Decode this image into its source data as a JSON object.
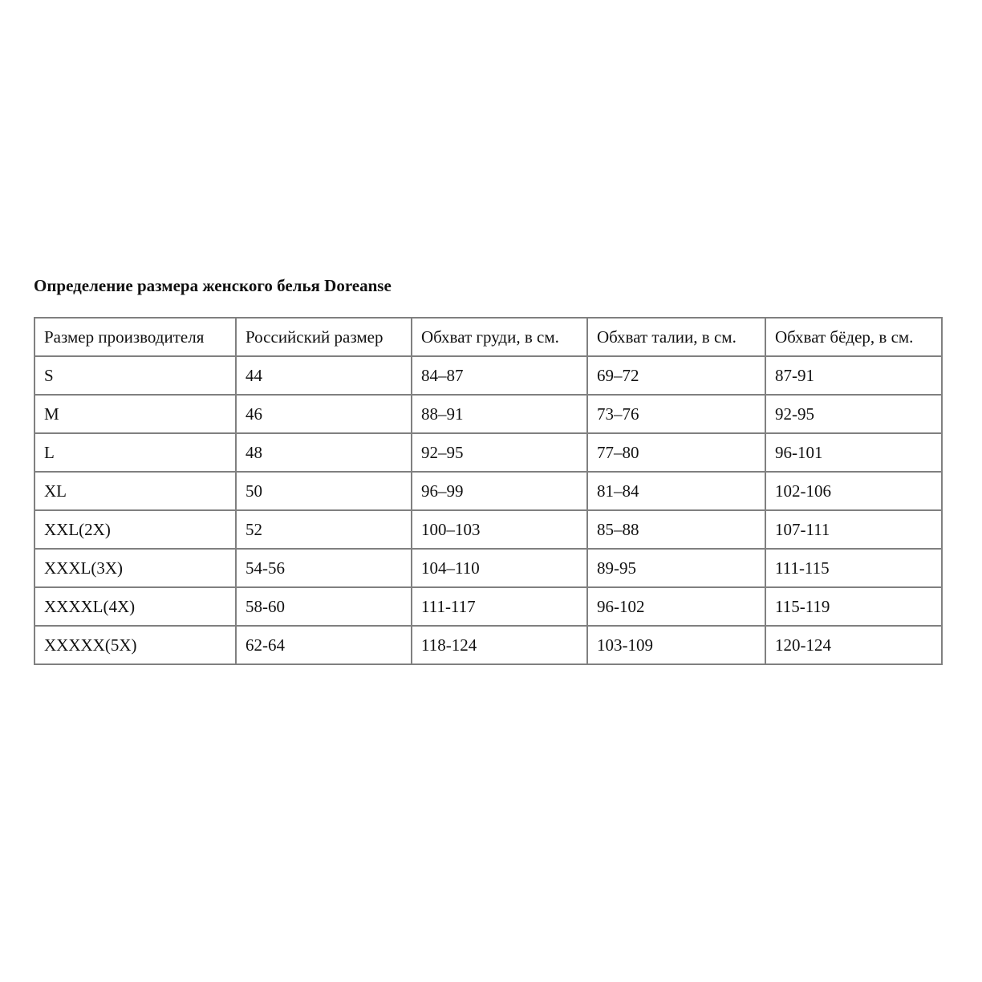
{
  "title": "Определение размера женского белья Doreanse",
  "table": {
    "headers": [
      "Размер производителя",
      "Российский размер",
      "Обхват груди, в см.",
      "Обхват талии, в см.",
      "Обхват бёдер, в см."
    ],
    "rows": [
      [
        "S",
        "44",
        "84–87",
        "69–72",
        "87-91"
      ],
      [
        "M",
        "46",
        "88–91",
        "73–76",
        "92-95"
      ],
      [
        "L",
        "48",
        "92–95",
        "77–80",
        "96-101"
      ],
      [
        "XL",
        "50",
        "96–99",
        "81–84",
        "102-106"
      ],
      [
        "XXL(2X)",
        "52",
        "100–103",
        "85–88",
        "107-111"
      ],
      [
        "XXXL(3X)",
        "54-56",
        "104–110",
        "89-95",
        "111-115"
      ],
      [
        "XXXXL(4X)",
        "58-60",
        "111-117",
        "96-102",
        "115-119"
      ],
      [
        "XXXXX(5X)",
        "62-64",
        "118-124",
        "103-109",
        "120-124"
      ]
    ]
  },
  "colors": {
    "border": "#808080",
    "text": "#111111"
  }
}
